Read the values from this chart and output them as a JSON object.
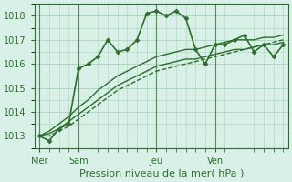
{
  "bg_color": "#d8f0e8",
  "grid_color": "#aad4bc",
  "line_color": "#2d6e2d",
  "marker_color": "#2d6e2d",
  "xlabel": "Pression niveau de la mer( hPa )",
  "xlabel_color": "#2d6e2d",
  "tick_color": "#2d6e2d",
  "ylim": [
    1012.5,
    1018.5
  ],
  "yticks": [
    1013,
    1014,
    1015,
    1016,
    1017,
    1018
  ],
  "day_labels": [
    "Mer",
    "Sam",
    "Jeu",
    "Ven"
  ],
  "day_positions": [
    0,
    4,
    12,
    18
  ],
  "series": [
    [
      1013.0,
      1012.8,
      1013.3,
      1013.5,
      1015.8,
      1016.0,
      1016.3,
      1017.0,
      1016.5,
      1016.6,
      1017.0,
      1018.1,
      1018.2,
      1018.0,
      1018.2,
      1017.9,
      1016.6,
      1016.0,
      1016.8,
      1016.8,
      1017.0,
      1017.2,
      1016.5,
      1016.8,
      1016.3,
      1016.8
    ],
    [
      1013.0,
      1013.2,
      1013.5,
      1013.8,
      1014.2,
      1014.5,
      1014.9,
      1015.2,
      1015.5,
      1015.7,
      1015.9,
      1016.1,
      1016.3,
      1016.4,
      1016.5,
      1016.6,
      1016.6,
      1016.7,
      1016.8,
      1016.9,
      1017.0,
      1017.0,
      1017.0,
      1017.1,
      1017.1,
      1017.2
    ],
    [
      1013.0,
      1013.1,
      1013.3,
      1013.6,
      1013.9,
      1014.2,
      1014.5,
      1014.8,
      1015.1,
      1015.3,
      1015.5,
      1015.7,
      1015.9,
      1016.0,
      1016.1,
      1016.2,
      1016.2,
      1016.3,
      1016.4,
      1016.5,
      1016.6,
      1016.6,
      1016.7,
      1016.8,
      1016.8,
      1016.9
    ],
    [
      1013.0,
      1013.0,
      1013.2,
      1013.4,
      1013.7,
      1014.0,
      1014.3,
      1014.6,
      1014.9,
      1015.1,
      1015.3,
      1015.5,
      1015.7,
      1015.8,
      1015.9,
      1016.0,
      1016.1,
      1016.2,
      1016.3,
      1016.4,
      1016.5,
      1016.6,
      1016.7,
      1016.8,
      1016.9,
      1017.0
    ]
  ],
  "series_styles": [
    {
      "lw": 1.2,
      "marker": "D",
      "ms": 2.5,
      "ls": "-"
    },
    {
      "lw": 1.0,
      "marker": null,
      "ms": 0,
      "ls": "-"
    },
    {
      "lw": 1.0,
      "marker": null,
      "ms": 0,
      "ls": "-"
    },
    {
      "lw": 1.0,
      "marker": null,
      "ms": 0,
      "ls": "--"
    }
  ]
}
